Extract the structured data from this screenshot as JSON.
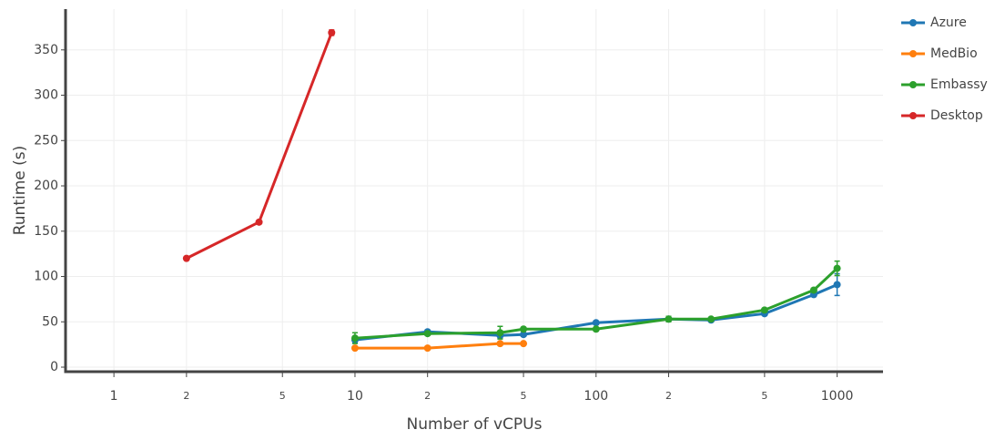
{
  "chart_data": {
    "type": "line",
    "xlabel": "Number of vCPUs",
    "ylabel": "Runtime (s)",
    "xscale": "log",
    "grid": true,
    "legend": "right",
    "xlim": [
      0.63,
      1550
    ],
    "ylim": [
      -5,
      395
    ],
    "xticks": [
      1,
      {
        "value": 2,
        "label": "2"
      },
      {
        "value": 5,
        "label": "5"
      },
      10,
      {
        "value": 20,
        "label": "2"
      },
      {
        "value": 50,
        "label": "5"
      },
      100,
      {
        "value": 200,
        "label": "2"
      },
      {
        "value": 500,
        "label": "5"
      },
      1000
    ],
    "yticks": [
      0,
      50,
      100,
      150,
      200,
      250,
      300,
      350
    ],
    "series": [
      {
        "name": "Azure",
        "color": "#1f77b4",
        "x": [
          10,
          20,
          40,
          50,
          100,
          200,
          300,
          500,
          800,
          1000
        ],
        "values": [
          30,
          39,
          35,
          36,
          49,
          53,
          52,
          59,
          80,
          91
        ],
        "errors": [
          3,
          2,
          3,
          2,
          2,
          2,
          2,
          2,
          2,
          12
        ]
      },
      {
        "name": "MedBio",
        "color": "#ff7f0e",
        "x": [
          10,
          20,
          40,
          50
        ],
        "values": [
          21,
          21,
          26,
          26
        ],
        "errors": [
          1,
          1,
          1,
          1
        ]
      },
      {
        "name": "Embassy",
        "color": "#2ca02c",
        "x": [
          10,
          20,
          40,
          50,
          100,
          200,
          300,
          500,
          800,
          1000
        ],
        "values": [
          32,
          37,
          38,
          42,
          42,
          53,
          53,
          63,
          85,
          109
        ],
        "errors": [
          6,
          2,
          7,
          2,
          2,
          3,
          2,
          2,
          2,
          8
        ]
      },
      {
        "name": "Desktop",
        "color": "#d62728",
        "x": [
          2,
          4,
          8
        ],
        "values": [
          120,
          160,
          369
        ],
        "errors": [
          1,
          1,
          3
        ]
      }
    ]
  }
}
